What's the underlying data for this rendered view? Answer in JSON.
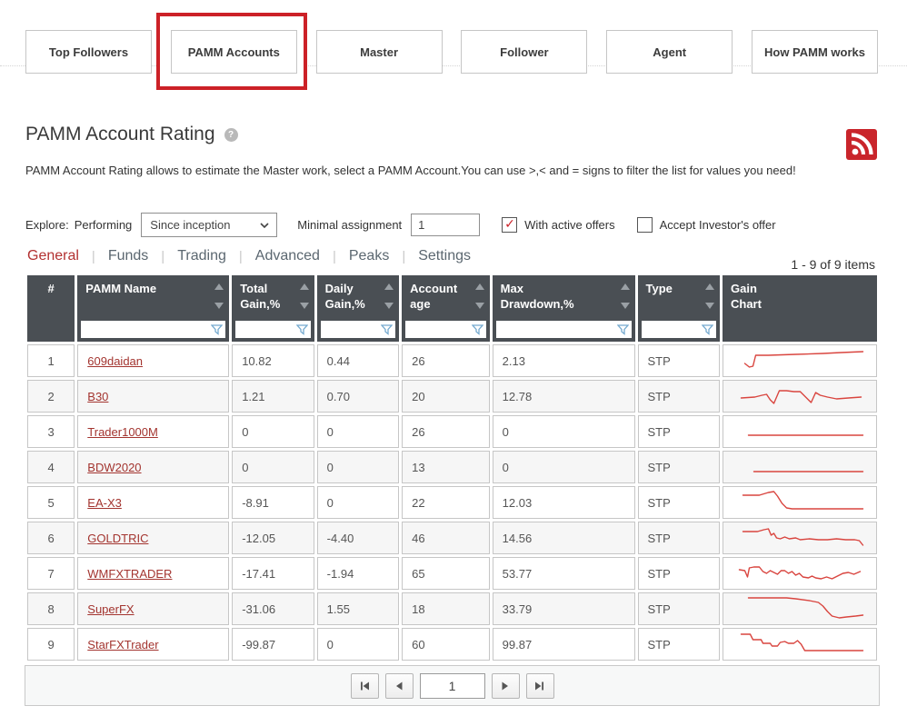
{
  "nav": {
    "buttons": [
      {
        "label": "Top Followers",
        "highlighted": false
      },
      {
        "label": "PAMM Accounts",
        "highlighted": true
      },
      {
        "label": "Master",
        "highlighted": false
      },
      {
        "label": "Follower",
        "highlighted": false
      },
      {
        "label": "Agent",
        "highlighted": false
      },
      {
        "label": "How PAMM works",
        "highlighted": false
      }
    ]
  },
  "header": {
    "title": "PAMM Account Rating",
    "help_icon": "question-mark",
    "rss_icon": "rss-feed",
    "description": "PAMM Account Rating allows to estimate the Master work, select a PAMM Account.You can use >,< and = signs to filter the list for values you need!"
  },
  "filters": {
    "explore_label": "Explore:",
    "performing_label": "Performing",
    "period_select_value": "Since inception",
    "minimal_assignment_label": "Minimal assignment",
    "minimal_assignment_value": "1",
    "with_active_offers": {
      "label": "With active offers",
      "checked": true
    },
    "accept_investors_offer": {
      "label": "Accept Investor's offer",
      "checked": false
    }
  },
  "tabs": {
    "items": [
      {
        "label": "General",
        "active": true
      },
      {
        "label": "Funds",
        "active": false
      },
      {
        "label": "Trading",
        "active": false
      },
      {
        "label": "Advanced",
        "active": false
      },
      {
        "label": "Peaks",
        "active": false
      },
      {
        "label": "Settings",
        "active": false
      }
    ],
    "items_count": "1 - 9 of 9 items"
  },
  "table": {
    "columns": [
      {
        "label": "#",
        "sortable": false,
        "filterable": false
      },
      {
        "label": "PAMM Name",
        "sortable": true,
        "filterable": true
      },
      {
        "label": "Total\nGain,%",
        "sortable": true,
        "filterable": true
      },
      {
        "label": "Daily\nGain,%",
        "sortable": true,
        "filterable": true
      },
      {
        "label": "Account\nage",
        "sortable": true,
        "filterable": true
      },
      {
        "label": "Max\nDrawdown,%",
        "sortable": true,
        "filterable": true
      },
      {
        "label": "Type",
        "sortable": true,
        "filterable": true
      },
      {
        "label": "Gain\nChart",
        "sortable": false,
        "filterable": false
      }
    ],
    "filter_values": [
      "",
      "",
      "",
      "",
      "",
      "",
      ""
    ],
    "rows": [
      {
        "num": "1",
        "name": "609daidan",
        "total_gain": "10.82",
        "daily_gain": "0.44",
        "account_age": "26",
        "max_drawdown": "2.13",
        "type": "STP",
        "sparkline": [
          [
            14,
            18
          ],
          [
            19,
            22
          ],
          [
            23,
            21
          ],
          [
            26,
            9
          ],
          [
            40,
            9
          ],
          [
            70,
            8
          ],
          [
            100,
            7
          ],
          [
            120,
            6
          ],
          [
            144,
            5
          ]
        ]
      },
      {
        "num": "2",
        "name": "B30",
        "total_gain": "1.21",
        "daily_gain": "0.70",
        "account_age": "20",
        "max_drawdown": "12.78",
        "type": "STP",
        "sparkline": [
          [
            10,
            17
          ],
          [
            25,
            16
          ],
          [
            33,
            14
          ],
          [
            38,
            13
          ],
          [
            42,
            19
          ],
          [
            46,
            23
          ],
          [
            52,
            9
          ],
          [
            60,
            9
          ],
          [
            68,
            10
          ],
          [
            75,
            10
          ],
          [
            82,
            17
          ],
          [
            87,
            22
          ],
          [
            92,
            11
          ],
          [
            97,
            14
          ],
          [
            105,
            16
          ],
          [
            115,
            18
          ],
          [
            128,
            17
          ],
          [
            142,
            16
          ]
        ]
      },
      {
        "num": "3",
        "name": "Trader1000M",
        "total_gain": "0",
        "daily_gain": "0",
        "account_age": "26",
        "max_drawdown": "0",
        "type": "STP",
        "sparkline": [
          [
            18,
            19
          ],
          [
            144,
            19
          ]
        ]
      },
      {
        "num": "4",
        "name": "BDW2020",
        "total_gain": "0",
        "daily_gain": "0",
        "account_age": "13",
        "max_drawdown": "0",
        "type": "STP",
        "sparkline": [
          [
            24,
            20
          ],
          [
            144,
            20
          ]
        ]
      },
      {
        "num": "5",
        "name": "EA-X3",
        "total_gain": "-8.91",
        "daily_gain": "0",
        "account_age": "22",
        "max_drawdown": "12.03",
        "type": "STP",
        "sparkline": [
          [
            12,
            7
          ],
          [
            30,
            7
          ],
          [
            40,
            4
          ],
          [
            46,
            3
          ],
          [
            50,
            8
          ],
          [
            55,
            16
          ],
          [
            60,
            21
          ],
          [
            66,
            22
          ],
          [
            144,
            22
          ]
        ]
      },
      {
        "num": "6",
        "name": "GOLDTRIC",
        "total_gain": "-12.05",
        "daily_gain": "-4.40",
        "account_age": "46",
        "max_drawdown": "14.56",
        "type": "STP",
        "sparkline": [
          [
            12,
            8
          ],
          [
            28,
            8
          ],
          [
            35,
            6
          ],
          [
            40,
            5
          ],
          [
            43,
            12
          ],
          [
            46,
            10
          ],
          [
            49,
            15
          ],
          [
            53,
            16
          ],
          [
            58,
            14
          ],
          [
            63,
            16
          ],
          [
            70,
            15
          ],
          [
            75,
            17
          ],
          [
            85,
            16
          ],
          [
            95,
            17
          ],
          [
            105,
            17
          ],
          [
            115,
            16
          ],
          [
            125,
            17
          ],
          [
            135,
            17
          ],
          [
            140,
            18
          ],
          [
            144,
            23
          ]
        ]
      },
      {
        "num": "7",
        "name": "WMFXTRADER",
        "total_gain": "-17.41",
        "daily_gain": "-1.94",
        "account_age": "65",
        "max_drawdown": "53.77",
        "type": "STP",
        "sparkline": [
          [
            8,
            11
          ],
          [
            14,
            12
          ],
          [
            17,
            19
          ],
          [
            19,
            9
          ],
          [
            24,
            8
          ],
          [
            30,
            8
          ],
          [
            34,
            13
          ],
          [
            38,
            15
          ],
          [
            42,
            12
          ],
          [
            46,
            14
          ],
          [
            50,
            16
          ],
          [
            54,
            12
          ],
          [
            58,
            12
          ],
          [
            62,
            15
          ],
          [
            66,
            13
          ],
          [
            70,
            17
          ],
          [
            74,
            15
          ],
          [
            78,
            19
          ],
          [
            84,
            20
          ],
          [
            88,
            18
          ],
          [
            92,
            20
          ],
          [
            98,
            21
          ],
          [
            104,
            19
          ],
          [
            110,
            21
          ],
          [
            116,
            18
          ],
          [
            122,
            15
          ],
          [
            128,
            14
          ],
          [
            134,
            16
          ],
          [
            141,
            13
          ]
        ]
      },
      {
        "num": "8",
        "name": "SuperFX",
        "total_gain": "-31.06",
        "daily_gain": "1.55",
        "account_age": "18",
        "max_drawdown": "33.79",
        "type": "STP",
        "sparkline": [
          [
            18,
            3
          ],
          [
            60,
            3
          ],
          [
            70,
            4
          ],
          [
            85,
            6
          ],
          [
            95,
            8
          ],
          [
            100,
            12
          ],
          [
            105,
            18
          ],
          [
            110,
            23
          ],
          [
            118,
            25
          ],
          [
            126,
            24
          ],
          [
            136,
            23
          ],
          [
            144,
            22
          ]
        ]
      },
      {
        "num": "9",
        "name": "StarFXTrader",
        "total_gain": "-99.87",
        "daily_gain": "0",
        "account_age": "60",
        "max_drawdown": "99.87",
        "type": "STP",
        "sparkline": [
          [
            10,
            4
          ],
          [
            20,
            4
          ],
          [
            23,
            10
          ],
          [
            32,
            10
          ],
          [
            34,
            14
          ],
          [
            42,
            14
          ],
          [
            44,
            17
          ],
          [
            50,
            17
          ],
          [
            53,
            13
          ],
          [
            58,
            12
          ],
          [
            62,
            14
          ],
          [
            68,
            14
          ],
          [
            72,
            11
          ],
          [
            76,
            15
          ],
          [
            80,
            22
          ],
          [
            92,
            22
          ],
          [
            144,
            22
          ]
        ]
      }
    ]
  },
  "pagination": {
    "first_icon": "first-page",
    "prev_icon": "previous-page",
    "page_value": "1",
    "next_icon": "next-page",
    "last_icon": "last-page"
  },
  "colors": {
    "accent_red": "#cc2127",
    "link_red": "#a3342f",
    "sparkline_red": "#d9453f",
    "header_bg": "#4a4f54",
    "tab_active": "#b23030"
  }
}
